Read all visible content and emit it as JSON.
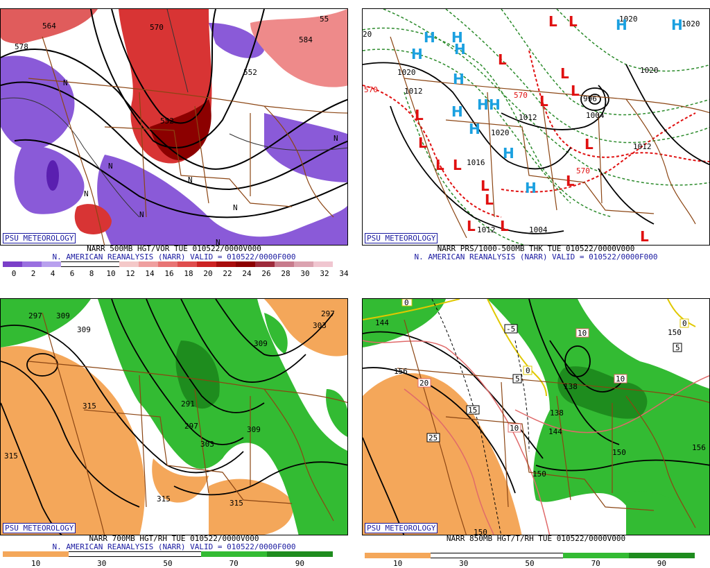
{
  "badge": "PSU METEOROLOGY",
  "panels": [
    {
      "title1": "NARR 500MB HGT/VOR TUE 010522/0000V000",
      "title2": "N. AMERICAN REANALYSIS (NARR) VALID = 010522/0000F000",
      "colorbar": {
        "labels": [
          "0",
          "2",
          "4",
          "6",
          "8",
          "10",
          "12",
          "14",
          "16",
          "18",
          "20",
          "22",
          "24",
          "26",
          "28",
          "30",
          "32",
          "34"
        ],
        "colors": [
          "#7b3fc8",
          "#9a6fe0",
          "#b8a0ee",
          "#ffffff",
          "#ffffff",
          "#ffffff",
          "#f4c8c8",
          "#ef9f9f",
          "#e87474",
          "#df4d4d",
          "#cc2222",
          "#a80d0d",
          "#8c0000",
          "#9e2b3b",
          "#c77b8c",
          "#dba3b0",
          "#f0c6d0"
        ]
      },
      "contour_labels": [
        "564",
        "578",
        "570",
        "552",
        "552",
        "584",
        "55"
      ],
      "vort_marks": [
        "N",
        "N",
        "N",
        "N",
        "N",
        "N",
        "N",
        "N"
      ]
    },
    {
      "title1": "NARR PRS/1000-500MB THK TUE 010522/0000V000",
      "title2": "N. AMERICAN REANALYSIS (NARR) VALID = 010522/0000F000",
      "contour_labels": [
        "1020",
        "1012",
        "1012",
        "1020",
        "1016",
        "1004",
        "996",
        "1012",
        "1012",
        "1004",
        "1020",
        "1020",
        "1020",
        "570",
        "570",
        "570",
        "20"
      ],
      "highs": [
        "H",
        "H",
        "H",
        "H",
        "H",
        "H",
        "H",
        "H",
        "H",
        "H",
        "H",
        "H",
        "H"
      ],
      "lows": [
        "L",
        "L",
        "L",
        "L",
        "L",
        "L",
        "L",
        "L",
        "L",
        "L",
        "L",
        "L",
        "L",
        "L",
        "L",
        "L",
        "L"
      ]
    },
    {
      "title1": "NARR 700MB HGT/RH TUE 010522/0000V000",
      "title2": "N. AMERICAN REANALYSIS (NARR) VALID = 010522/0000F000",
      "colorbar": {
        "labels": [
          "10",
          "30",
          "50",
          "70",
          "90"
        ],
        "colors": [
          "#f4a75a",
          "#ffffff",
          "#ffffff",
          "#33bb33",
          "#1e8c1e"
        ]
      },
      "contour_labels": [
        "297",
        "309",
        "309",
        "315",
        "315",
        "291",
        "297",
        "303",
        "309",
        "315",
        "315",
        "297",
        "303",
        "309"
      ]
    },
    {
      "title1": "NARR 850MB HGT/T/RH TUE 010522/0000V000",
      "title2": "",
      "colorbar": {
        "labels": [
          "10",
          "30",
          "50",
          "70",
          "90"
        ],
        "colors": [
          "#f4a75a",
          "#ffffff",
          "#ffffff",
          "#33bb33",
          "#1e8c1e"
        ]
      },
      "contour_labels": [
        "144",
        "156",
        "138",
        "138",
        "144",
        "150",
        "150",
        "156",
        "150",
        "150"
      ],
      "temp_labels": [
        "0",
        "-5",
        "5",
        "0",
        "10",
        "10",
        "5",
        "20",
        "15",
        "10",
        "25",
        "0"
      ]
    }
  ]
}
